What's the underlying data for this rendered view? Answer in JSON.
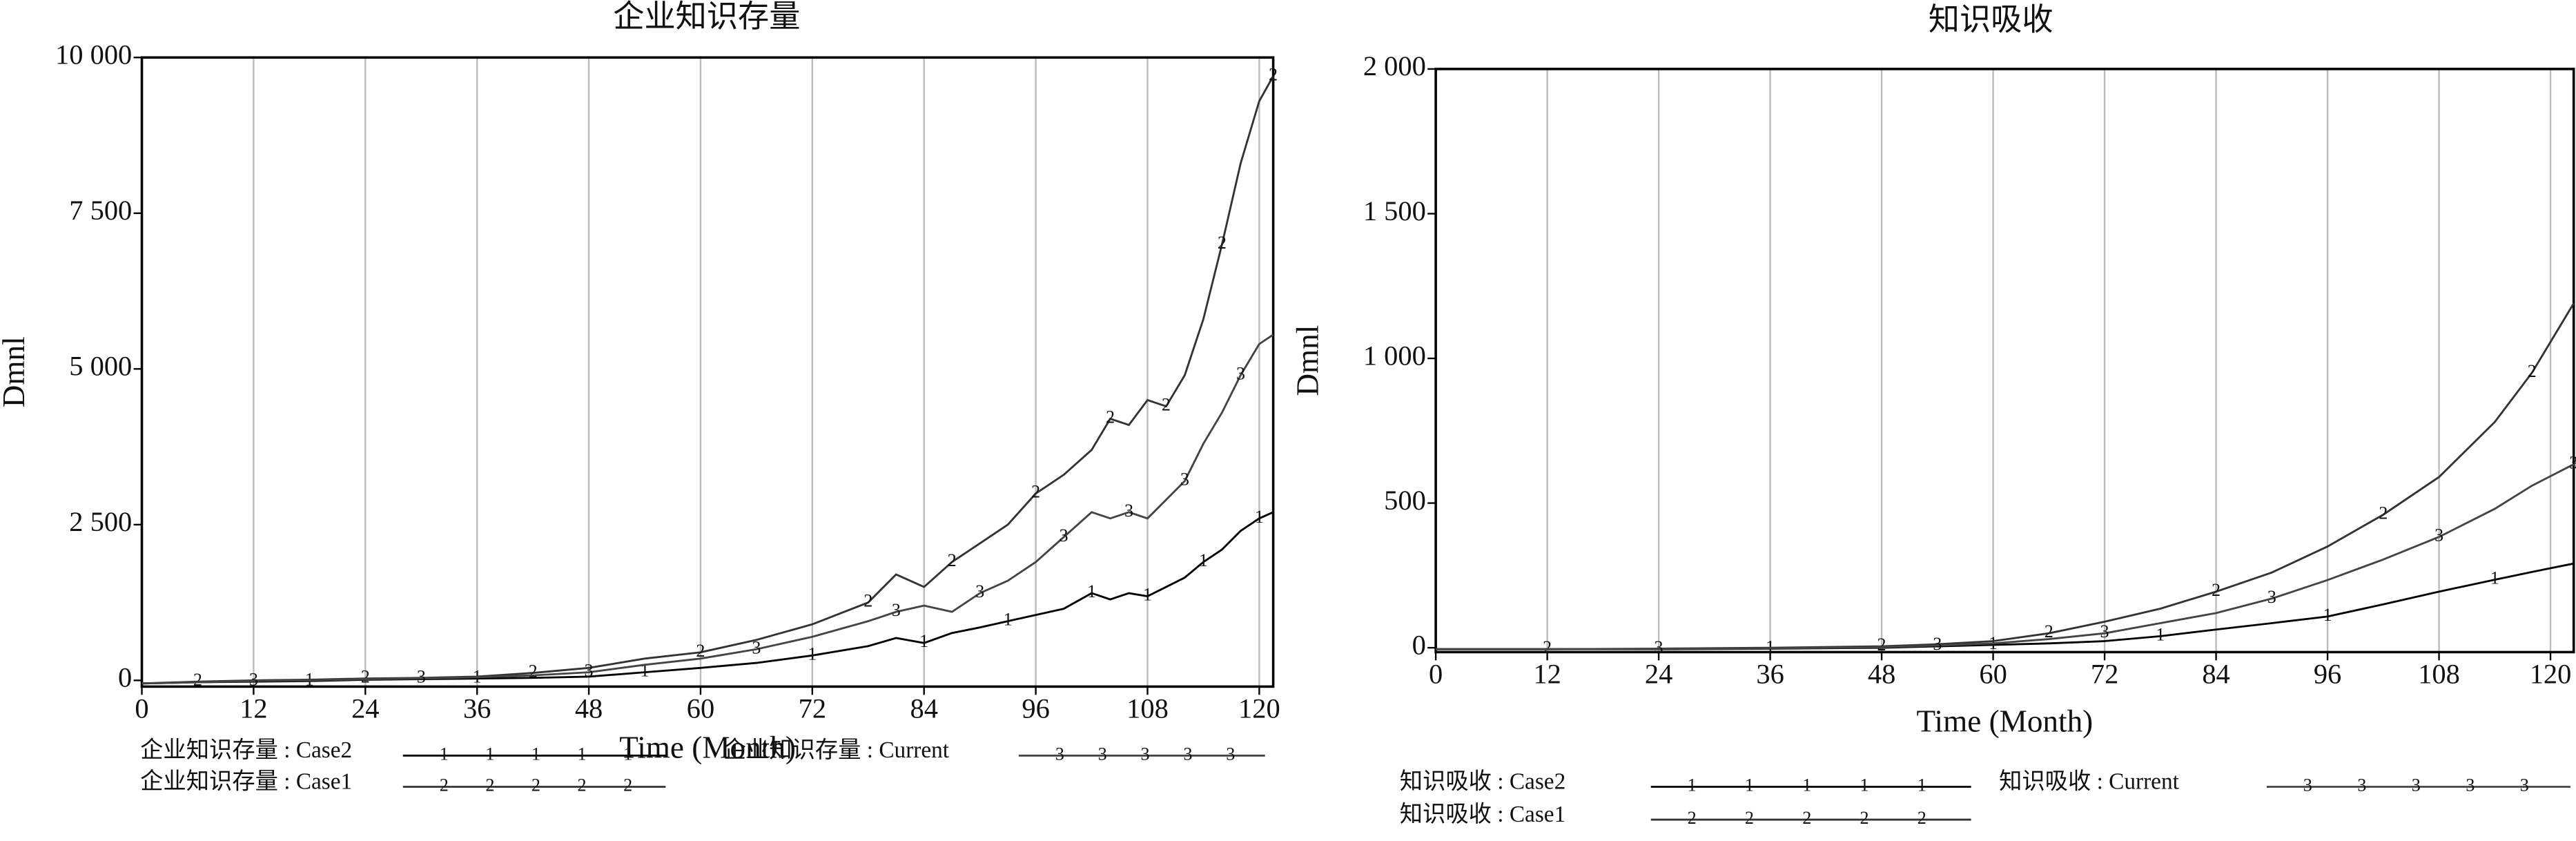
{
  "chart_data": [
    {
      "type": "line",
      "title": "企业知识存量",
      "x_label": "Time (Month)",
      "y_label": "Dmnl",
      "x": [
        0,
        6,
        12,
        18,
        24,
        30,
        36,
        42,
        48,
        54,
        60,
        66,
        72,
        78,
        81,
        84,
        87,
        90,
        93,
        96,
        99,
        102,
        104,
        106,
        108,
        110,
        112,
        114,
        116,
        118,
        120,
        121.5
      ],
      "series": [
        {
          "name": "企业知识存量 : Case2",
          "marker": "1",
          "color": "#000000",
          "values": [
            -50,
            -30,
            -20,
            -10,
            10,
            20,
            30,
            40,
            60,
            130,
            200,
            280,
            400,
            550,
            680,
            600,
            760,
            850,
            950,
            1050,
            1150,
            1400,
            1300,
            1400,
            1350,
            1500,
            1650,
            1900,
            2100,
            2400,
            2600,
            2700
          ]
        },
        {
          "name": "企业知识存量 : Case1",
          "marker": "2",
          "color": "#333333",
          "values": [
            -50,
            -20,
            0,
            10,
            30,
            40,
            60,
            120,
            200,
            350,
            450,
            650,
            900,
            1250,
            1700,
            1500,
            1900,
            2200,
            2500,
            3000,
            3300,
            3700,
            4200,
            4100,
            4500,
            4400,
            4900,
            5800,
            7000,
            8300,
            9300,
            9700
          ]
        },
        {
          "name": "企业知识存量 : Current",
          "marker": "3",
          "color": "#444444",
          "values": [
            -50,
            -30,
            -10,
            0,
            20,
            30,
            50,
            80,
            130,
            250,
            350,
            500,
            700,
            950,
            1100,
            1200,
            1100,
            1400,
            1600,
            1900,
            2300,
            2700,
            2600,
            2700,
            2600,
            2900,
            3200,
            3800,
            4300,
            4900,
            5400,
            5550
          ]
        }
      ],
      "xlim": [
        0,
        121.5
      ],
      "xticks": [
        0,
        12,
        24,
        36,
        48,
        60,
        72,
        84,
        96,
        108,
        120
      ],
      "ylim": [
        -100,
        10000
      ],
      "yticks": [
        0,
        {
          "value": 2500,
          "label": "2 500"
        },
        {
          "value": 5000,
          "label": "5 000"
        },
        {
          "value": 7500,
          "label": "7 500"
        },
        {
          "value": 10000,
          "label": "10 000"
        }
      ],
      "grid": true,
      "legend": "bottom"
    },
    {
      "type": "line",
      "title": "知识吸收",
      "x_label": "Time (Month)",
      "y_label": "Dmnl",
      "x": [
        0,
        12,
        24,
        36,
        48,
        54,
        60,
        66,
        72,
        78,
        84,
        90,
        96,
        102,
        108,
        114,
        118,
        122.5
      ],
      "series": [
        {
          "name": "知识吸收 : Case2",
          "marker": "1",
          "color": "#000000",
          "values": [
            -5,
            -5,
            -5,
            -3,
            0,
            5,
            10,
            15,
            23,
            40,
            63,
            85,
            108,
            150,
            194,
            235,
            262,
            291
          ]
        },
        {
          "name": "知识吸收 : Case1",
          "marker": "2",
          "color": "#333333",
          "values": [
            -5,
            -5,
            -3,
            0,
            5,
            12,
            23,
            50,
            90,
            135,
            194,
            260,
            350,
            460,
            590,
            780,
            950,
            1190
          ]
        },
        {
          "name": "知识吸收 : Current",
          "marker": "3",
          "color": "#444444",
          "values": [
            -5,
            -5,
            -4,
            -2,
            2,
            8,
            15,
            30,
            50,
            85,
            120,
            170,
            234,
            305,
            383,
            480,
            560,
            634
          ]
        }
      ],
      "xlim": [
        0,
        122.5
      ],
      "xticks": [
        0,
        12,
        24,
        36,
        48,
        60,
        72,
        84,
        96,
        108,
        120
      ],
      "ylim": [
        -15,
        2000
      ],
      "yticks": [
        0,
        500,
        {
          "value": 1000,
          "label": "1 000"
        },
        {
          "value": 1500,
          "label": "1 500"
        },
        {
          "value": 2000,
          "label": "2 000"
        }
      ],
      "grid": true,
      "legend": "bottom"
    }
  ]
}
